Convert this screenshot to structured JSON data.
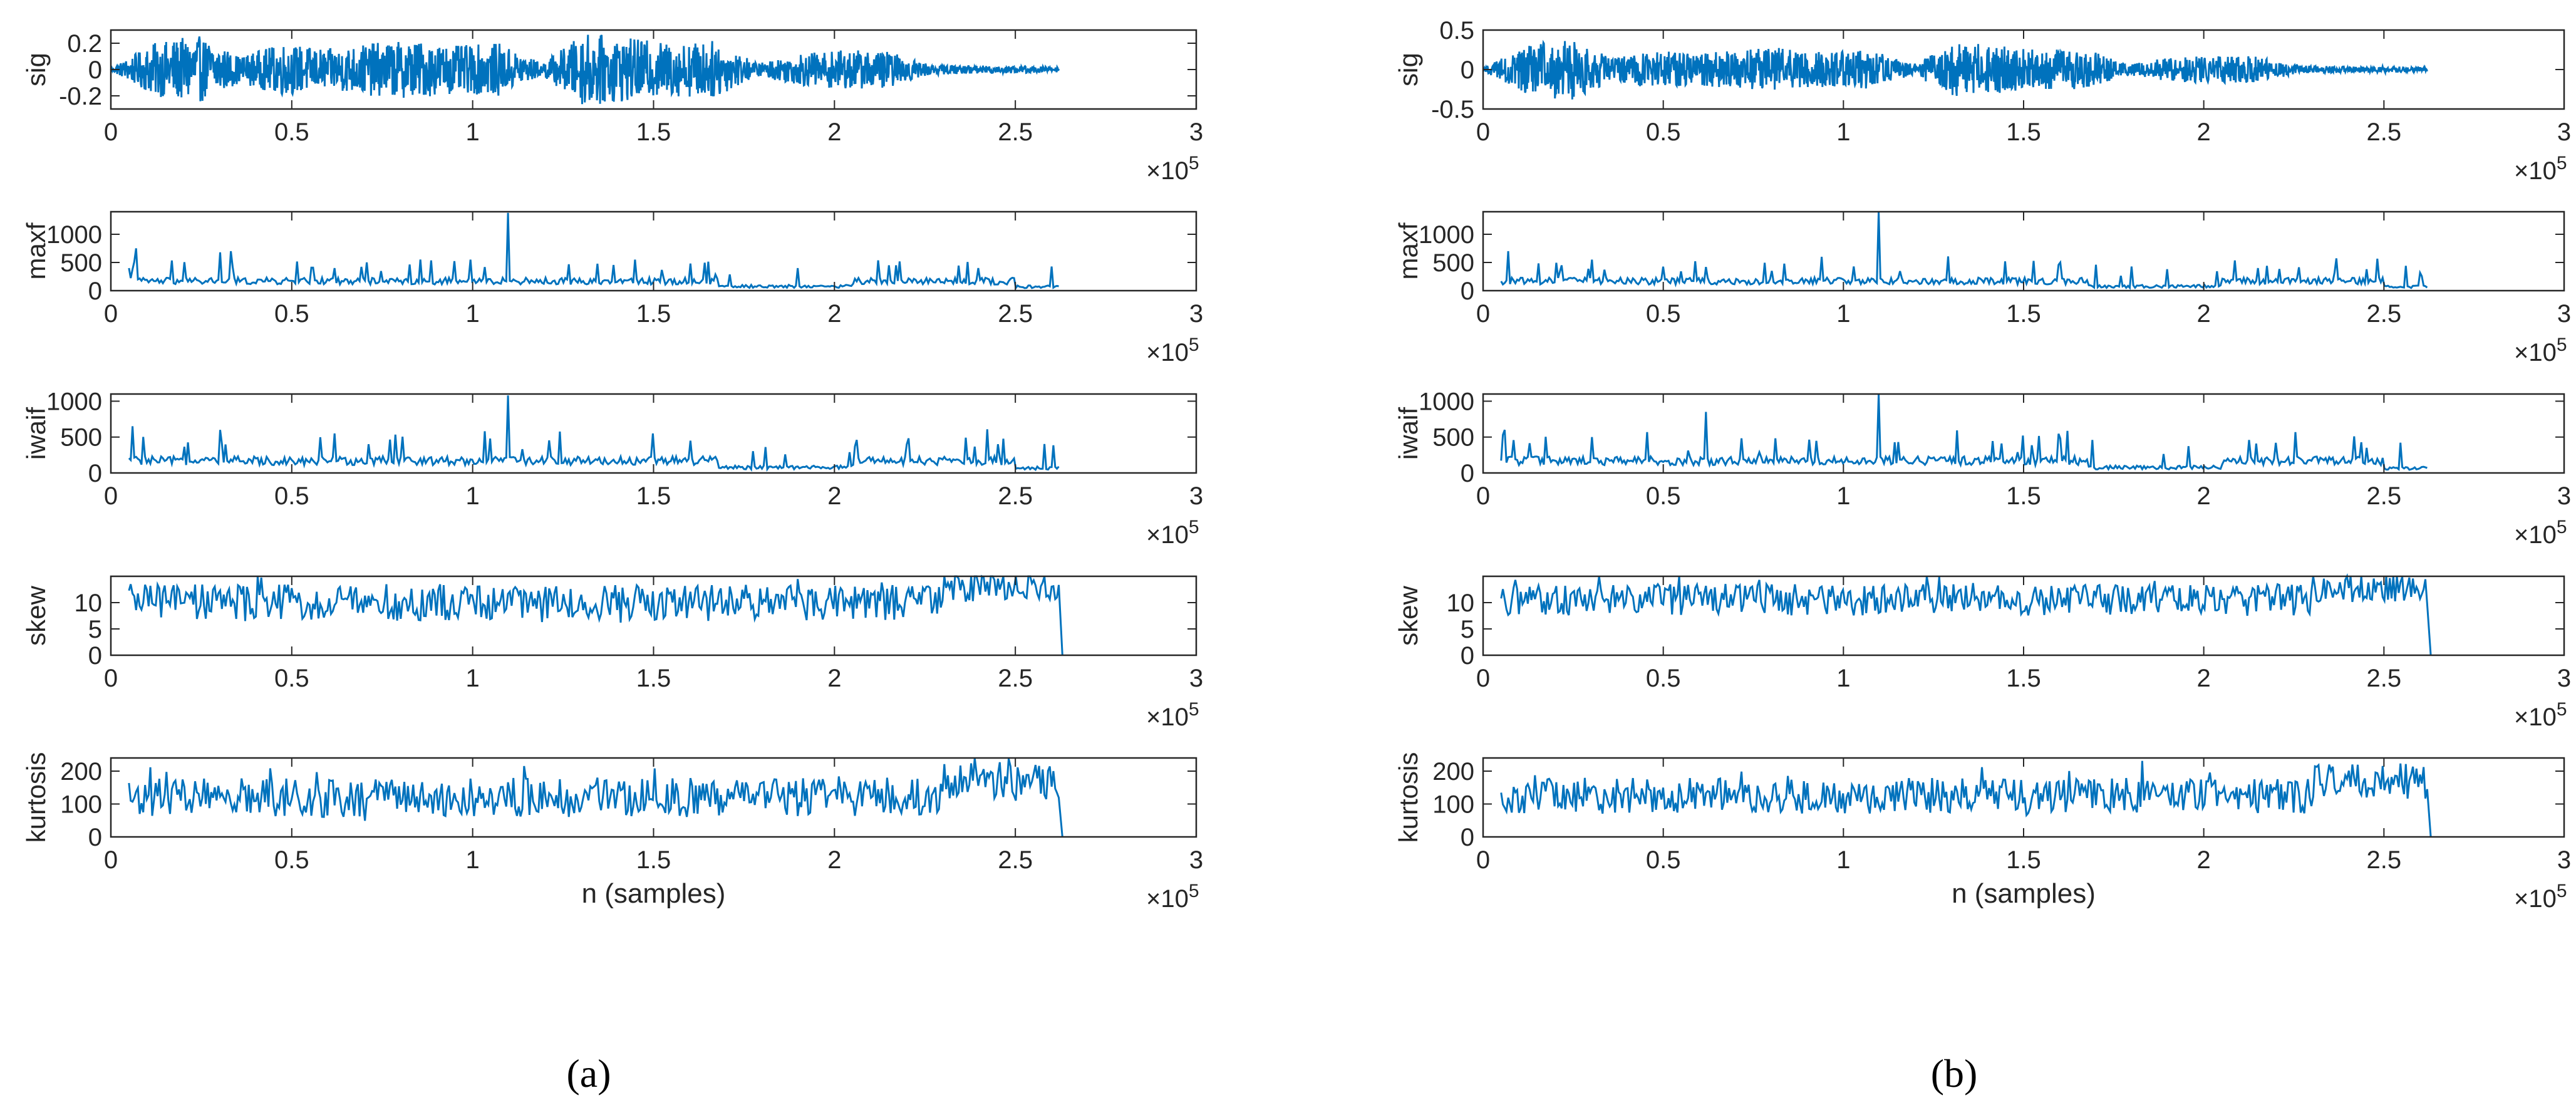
{
  "colors": {
    "line": "#0072BD",
    "axis": "#262626",
    "background": "#ffffff"
  },
  "captions": {
    "a": "(a)",
    "b": "(b)"
  },
  "common": {
    "xlabel": "n (samples)",
    "x_ticks": [
      "0",
      "0.5",
      "1",
      "1.5",
      "2",
      "2.5",
      "3"
    ],
    "x_exponent_base": "×10",
    "x_exponent_power": "5"
  },
  "chart_data": [
    {
      "panel": "a",
      "type": "line",
      "xlim": [
        0,
        300000
      ],
      "n_samples": 262000,
      "subplots": [
        {
          "ylabel": "sig",
          "ylim": [
            -0.3,
            0.3
          ],
          "y_ticks": [
            -0.2,
            0,
            0.2
          ],
          "y_tick_labels": [
            "-0.2",
            "0",
            "0.2"
          ],
          "series": [
            {
              "x_range": [
                0,
                262000
              ],
              "baseline": 0,
              "envelope": [
                0.01,
                0.2,
                0.26,
                0.1,
                0.2,
                0.15,
                0.2,
                0.22,
                0.18,
                0.2,
                0.05,
                0.28,
                0.24,
                0.2,
                0.22,
                0.05,
                0.12,
                0.15,
                0.14,
                0.04,
                0.03,
                0.03,
                0.02
              ]
            }
          ]
        },
        {
          "ylabel": "maxf",
          "ylim": [
            0,
            1400
          ],
          "y_ticks": [
            0,
            500,
            1000
          ],
          "y_tick_labels": [
            "0",
            "500",
            "1000"
          ],
          "series": [
            {
              "x_range": [
                5000,
                262000
              ],
              "base": 200,
              "spikes": [
                [
                  7000,
                  750
                ],
                [
                  30000,
                  680
                ],
                [
                  33000,
                  700
                ],
                [
                  62000,
                  400
                ],
                [
                  110000,
                  1380
                ],
                [
                  145000,
                  550
                ],
                [
                  160000,
                  480
                ],
                [
                  190000,
                  400
                ],
                [
                  215000,
                  450
                ],
                [
                  240000,
                  400
                ]
              ]
            }
          ]
        },
        {
          "ylabel": "iwaif",
          "ylim": [
            0,
            1100
          ],
          "y_ticks": [
            0,
            500,
            1000
          ],
          "y_tick_labels": [
            "0",
            "500",
            "1000"
          ],
          "series": [
            {
              "x_range": [
                5000,
                262000
              ],
              "base": 200,
              "spikes": [
                [
                  6000,
                  650
                ],
                [
                  30000,
                  600
                ],
                [
                  62000,
                  550
                ],
                [
                  110000,
                  1080
                ],
                [
                  150000,
                  550
                ],
                [
                  160000,
                  450
                ],
                [
                  220000,
                  400
                ],
                [
                  245000,
                  400
                ]
              ]
            }
          ]
        },
        {
          "ylabel": "skew",
          "ylim": [
            0,
            15
          ],
          "y_ticks": [
            0,
            5,
            10
          ],
          "y_tick_labels": [
            "0",
            "5",
            "10"
          ],
          "series": [
            {
              "x_range": [
                5000,
                262000
              ],
              "mean": 10,
              "spread": 3.5
            }
          ]
        },
        {
          "ylabel": "kurtosis",
          "ylim": [
            0,
            240
          ],
          "y_ticks": [
            0,
            100,
            200
          ],
          "y_tick_labels": [
            "0",
            "100",
            "200"
          ],
          "series": [
            {
              "x_range": [
                5000,
                262000
              ],
              "mean": 120,
              "spread": 60
            }
          ]
        }
      ]
    },
    {
      "panel": "b",
      "type": "line",
      "xlim": [
        0,
        300000
      ],
      "n_samples": 262000,
      "subplots": [
        {
          "ylabel": "sig",
          "ylim": [
            -0.5,
            0.5
          ],
          "y_ticks": [
            -0.5,
            0,
            0.5
          ],
          "y_tick_labels": [
            "-0.5",
            "0",
            "0.5"
          ],
          "series": [
            {
              "x_range": [
                0,
                262000
              ],
              "baseline": 0,
              "envelope": [
                0.02,
                0.3,
                0.4,
                0.15,
                0.25,
                0.2,
                0.25,
                0.28,
                0.22,
                0.25,
                0.07,
                0.35,
                0.3,
                0.25,
                0.27,
                0.07,
                0.15,
                0.18,
                0.17,
                0.05,
                0.04,
                0.04,
                0.03
              ]
            }
          ]
        },
        {
          "ylabel": "maxf",
          "ylim": [
            0,
            1400
          ],
          "y_ticks": [
            0,
            500,
            1000
          ],
          "y_tick_labels": [
            "0",
            "500",
            "1000"
          ],
          "series": [
            {
              "x_range": [
                5000,
                262000
              ],
              "base": 200,
              "spikes": [
                [
                  7000,
                  700
                ],
                [
                  30000,
                  550
                ],
                [
                  62000,
                  420
                ],
                [
                  110000,
                  1400
                ],
                [
                  145000,
                  520
                ],
                [
                  160000,
                  500
                ],
                [
                  190000,
                  380
                ],
                [
                  215000,
                  400
                ],
                [
                  245000,
                  380
                ]
              ]
            }
          ]
        },
        {
          "ylabel": "iwaif",
          "ylim": [
            0,
            1100
          ],
          "y_ticks": [
            0,
            500,
            1000
          ],
          "y_tick_labels": [
            "0",
            "500",
            "1000"
          ],
          "series": [
            {
              "x_range": [
                5000,
                262000
              ],
              "base": 200,
              "spikes": [
                [
                  6000,
                  600
                ],
                [
                  30000,
                  500
                ],
                [
                  62000,
                  850
                ],
                [
                  110000,
                  1100
                ],
                [
                  150000,
                  520
                ],
                [
                  160000,
                  480
                ],
                [
                  220000,
                  420
                ],
                [
                  245000,
                  350
                ]
              ]
            }
          ]
        },
        {
          "ylabel": "skew",
          "ylim": [
            0,
            15
          ],
          "y_ticks": [
            0,
            5,
            10
          ],
          "y_tick_labels": [
            "0",
            "5",
            "10"
          ],
          "series": [
            {
              "x_range": [
                5000,
                262000
              ],
              "mean": 10.5,
              "spread": 3
            }
          ]
        },
        {
          "ylabel": "kurtosis",
          "ylim": [
            0,
            240
          ],
          "y_ticks": [
            0,
            100,
            200
          ],
          "y_tick_labels": [
            "0",
            "100",
            "200"
          ],
          "series": [
            {
              "x_range": [
                5000,
                262000
              ],
              "mean": 125,
              "spread": 55
            }
          ]
        }
      ]
    }
  ]
}
